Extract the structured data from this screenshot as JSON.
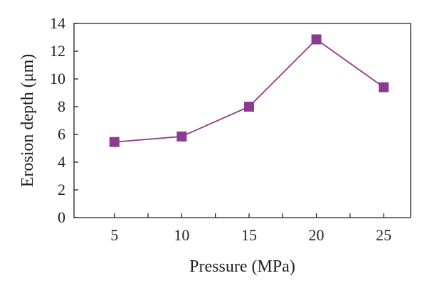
{
  "chart_data": {
    "type": "line",
    "title": "",
    "xlabel": "Pressure (MPa)",
    "ylabel": "Erosion depth (μm)",
    "x": [
      5,
      10,
      15,
      20,
      25
    ],
    "series": [
      {
        "values": [
          5.45,
          5.85,
          8.0,
          12.85,
          9.4
        ],
        "color": "#8b3a8f",
        "marker": "square"
      }
    ],
    "xlim": [
      2,
      27
    ],
    "ylim": [
      0,
      14
    ],
    "xticks": [
      5,
      10,
      15,
      20,
      25
    ],
    "yticks": [
      0,
      2,
      4,
      6,
      8,
      10,
      12,
      14
    ],
    "grid": false,
    "legend": "none"
  }
}
